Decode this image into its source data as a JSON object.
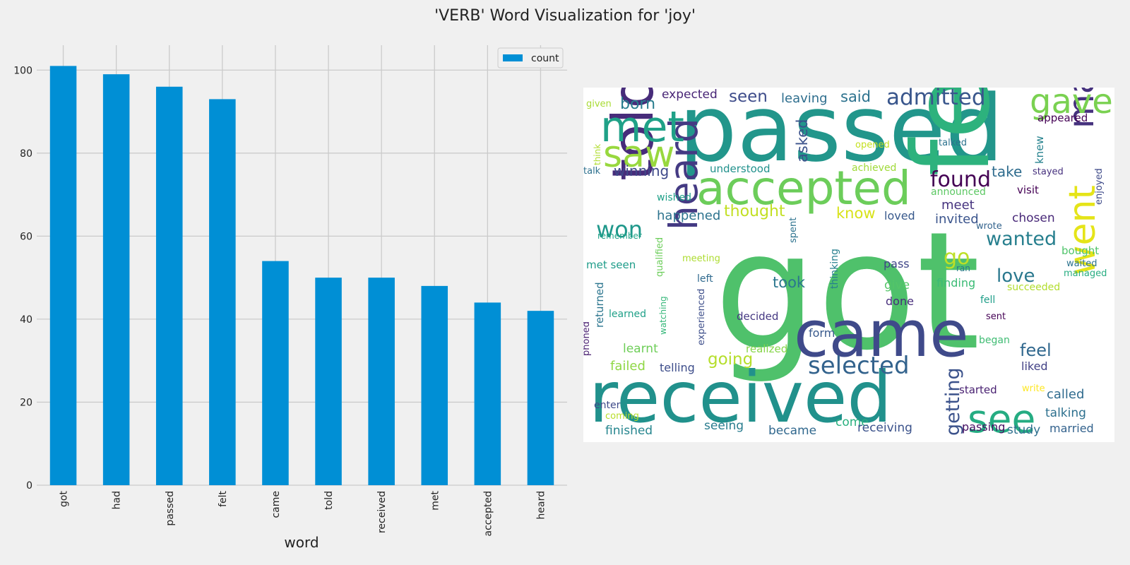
{
  "figure": {
    "title": "'VERB' Word Visualization for 'joy'"
  },
  "chart_data": [
    {
      "type": "bar",
      "categories": [
        "got",
        "had",
        "passed",
        "felt",
        "came",
        "told",
        "received",
        "met",
        "accepted",
        "heard"
      ],
      "series": [
        {
          "name": "count",
          "values": [
            101,
            99,
            96,
            93,
            54,
            50,
            50,
            48,
            44,
            42
          ]
        }
      ],
      "xlabel": "word",
      "ylabel": "",
      "ylim": [
        0,
        106
      ],
      "yticks": [
        0,
        20,
        40,
        60,
        80,
        100
      ],
      "grid": true,
      "legend": "top-right",
      "colors": {
        "bar": "#008fd5",
        "grid": "#cbcbcb",
        "background": "#f0f0f0"
      }
    },
    {
      "type": "wordcloud",
      "background": "#ffffff",
      "colormap": "viridis",
      "words": [
        {
          "text": "got",
          "color": "#4fc16b"
        },
        {
          "text": "passed",
          "color": "#22968b"
        },
        {
          "text": "felt",
          "color": "#2db27d"
        },
        {
          "text": "received",
          "color": "#21918c"
        },
        {
          "text": "came",
          "color": "#3f4a8a"
        },
        {
          "text": "accepted",
          "color": "#6ccd5a"
        },
        {
          "text": "told",
          "color": "#472c7a"
        },
        {
          "text": "heard",
          "color": "#443a83"
        },
        {
          "text": "made",
          "color": "#46327e"
        },
        {
          "text": "went",
          "color": "#e5e419"
        },
        {
          "text": "see",
          "color": "#25ac82"
        },
        {
          "text": "saw",
          "color": "#98d83e"
        },
        {
          "text": "met",
          "color": "#1fa187"
        },
        {
          "text": "gave",
          "color": "#7ad151"
        },
        {
          "text": "selected",
          "color": "#33638d"
        },
        {
          "text": "admitted",
          "color": "#39568c"
        },
        {
          "text": "found",
          "color": "#440154"
        },
        {
          "text": "won",
          "color": "#1f988b"
        },
        {
          "text": "wanted",
          "color": "#277f8e"
        },
        {
          "text": "go",
          "color": "#bddf26"
        },
        {
          "text": "love",
          "color": "#2a788e"
        },
        {
          "text": "getting",
          "color": "#3b528b"
        },
        {
          "text": "feel",
          "color": "#31688e"
        },
        {
          "text": "born",
          "color": "#287d8e"
        },
        {
          "text": "seen",
          "color": "#3e4c8a"
        },
        {
          "text": "said",
          "color": "#2c728e"
        },
        {
          "text": "expected",
          "color": "#482576"
        },
        {
          "text": "leaving",
          "color": "#2e6e8e"
        },
        {
          "text": "asked",
          "color": "#3b528b"
        },
        {
          "text": "winning",
          "color": "#3e4989"
        },
        {
          "text": "thought",
          "color": "#c2df23"
        },
        {
          "text": "happened",
          "color": "#2c738e"
        },
        {
          "text": "know",
          "color": "#d8e219"
        },
        {
          "text": "took",
          "color": "#2a768e"
        },
        {
          "text": "going",
          "color": "#b5de2b"
        },
        {
          "text": "take",
          "color": "#2f6c8e"
        },
        {
          "text": "meet",
          "color": "#46337f"
        },
        {
          "text": "invited",
          "color": "#3a548c"
        },
        {
          "text": "chosen",
          "color": "#482878"
        },
        {
          "text": "loved",
          "color": "#38598c"
        },
        {
          "text": "pass",
          "color": "#404688"
        },
        {
          "text": "give",
          "color": "#54c568"
        },
        {
          "text": "finding",
          "color": "#3bbb75"
        },
        {
          "text": "done",
          "color": "#472d7b"
        },
        {
          "text": "decided",
          "color": "#453882"
        },
        {
          "text": "form",
          "color": "#38598c"
        },
        {
          "text": "failed",
          "color": "#8fd744"
        },
        {
          "text": "learnt",
          "color": "#6ece58"
        },
        {
          "text": "telling",
          "color": "#3d4d8a"
        },
        {
          "text": "realized",
          "color": "#86d549"
        },
        {
          "text": "finished",
          "color": "#25858e"
        },
        {
          "text": "seeing",
          "color": "#287c8e"
        },
        {
          "text": "became",
          "color": "#31688e"
        },
        {
          "text": "come",
          "color": "#2ab07f"
        },
        {
          "text": "receiving",
          "color": "#3b528b"
        },
        {
          "text": "passing",
          "color": "#471164"
        },
        {
          "text": "study",
          "color": "#2e6f8e"
        },
        {
          "text": "married",
          "color": "#33628d"
        },
        {
          "text": "talking",
          "color": "#2d708e"
        },
        {
          "text": "called",
          "color": "#2f6b8e"
        },
        {
          "text": "started",
          "color": "#482071"
        },
        {
          "text": "liked",
          "color": "#424186"
        },
        {
          "text": "enter",
          "color": "#3e4a89"
        },
        {
          "text": "coming",
          "color": "#b8de29"
        },
        {
          "text": "write",
          "color": "#fde725"
        },
        {
          "text": "returned",
          "color": "#2b758e"
        },
        {
          "text": "learned",
          "color": "#1fa088"
        },
        {
          "text": "met seen",
          "color": "#1e9c89"
        },
        {
          "text": "understood",
          "color": "#21918c"
        },
        {
          "text": "achieved",
          "color": "#a0da39"
        },
        {
          "text": "announced",
          "color": "#5cc863"
        },
        {
          "text": "visit",
          "color": "#440154"
        },
        {
          "text": "wished",
          "color": "#1fa088"
        },
        {
          "text": "spent",
          "color": "#2c728e"
        },
        {
          "text": "thinking",
          "color": "#277f8e"
        },
        {
          "text": "experienced",
          "color": "#3d4e8a"
        },
        {
          "text": "watching",
          "color": "#35b779"
        },
        {
          "text": "qualified",
          "color": "#6ccd5a"
        },
        {
          "text": "meeting",
          "color": "#addc30"
        },
        {
          "text": "left",
          "color": "#306a8e"
        },
        {
          "text": "phoned",
          "color": "#481f70"
        },
        {
          "text": "remember",
          "color": "#1fa287"
        },
        {
          "text": "think",
          "color": "#b0dd2f"
        },
        {
          "text": "talk",
          "color": "#2d708e"
        },
        {
          "text": "given",
          "color": "#a8db34"
        },
        {
          "text": "opened",
          "color": "#c5e021"
        },
        {
          "text": "talked",
          "color": "#2c728e"
        },
        {
          "text": "knew",
          "color": "#26828e"
        },
        {
          "text": "stayed",
          "color": "#46307e"
        },
        {
          "text": "enjoyed",
          "color": "#3e4a89"
        },
        {
          "text": "appeared",
          "color": "#440154"
        },
        {
          "text": "bought",
          "color": "#50c46a"
        },
        {
          "text": "waited",
          "color": "#2c738e"
        },
        {
          "text": "managed",
          "color": "#27ad81"
        },
        {
          "text": "succeeded",
          "color": "#b2dd2d"
        },
        {
          "text": "ran",
          "color": "#2a788e"
        },
        {
          "text": "wrote",
          "color": "#33638d"
        },
        {
          "text": "fell",
          "color": "#1f9e89"
        },
        {
          "text": "sent",
          "color": "#440154"
        },
        {
          "text": "began",
          "color": "#3fbc73"
        }
      ]
    }
  ]
}
